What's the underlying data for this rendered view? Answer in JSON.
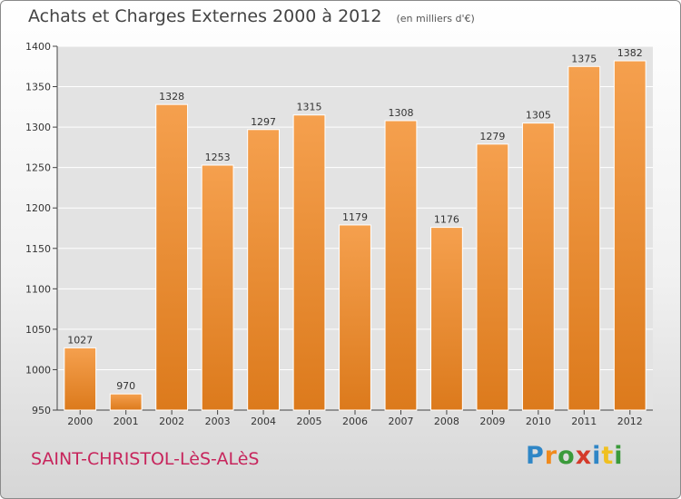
{
  "chart_data": {
    "type": "bar",
    "title": "Achats et Charges Externes 2000 à 2012",
    "subtitle": "(en milliers d'€)",
    "categories": [
      "2000",
      "2001",
      "2002",
      "2003",
      "2004",
      "2005",
      "2006",
      "2007",
      "2008",
      "2009",
      "2010",
      "2011",
      "2012"
    ],
    "values": [
      1027,
      970,
      1328,
      1253,
      1297,
      1315,
      1179,
      1308,
      1176,
      1279,
      1305,
      1375,
      1382
    ],
    "ylim": [
      950,
      1400
    ],
    "yticks": [
      950,
      1000,
      1050,
      1100,
      1150,
      1200,
      1250,
      1300,
      1350,
      1400
    ],
    "grid": true,
    "bar_color": "#f5a04e",
    "bar_color_dark": "#dc7a1c"
  },
  "footer": {
    "commune": "SAINT-CHRISTOL-LèS-ALèS",
    "logo_letters": [
      "P",
      "r",
      "o",
      "x",
      "i",
      "t",
      "i"
    ],
    "logo_colors": [
      "#2f86c6",
      "#f08a1c",
      "#3a9a3a",
      "#d43a2a",
      "#2f86c6",
      "#f0c020",
      "#3a9a3a"
    ]
  }
}
